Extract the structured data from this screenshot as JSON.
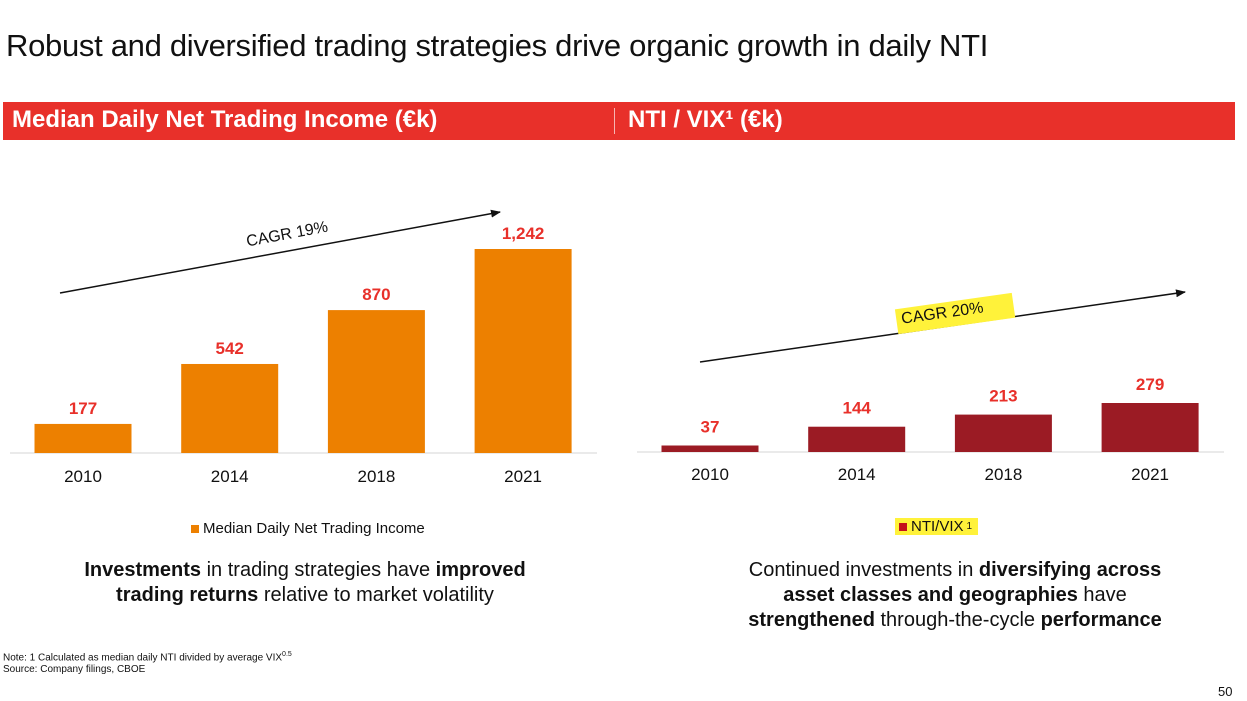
{
  "title": "Robust and diversified trading strategies drive organic growth in daily NTI",
  "page_number": "50",
  "left_panel": {
    "header": "Median Daily Net Trading Income (€k)",
    "cagr_label": "CAGR 19%",
    "legend": "Median Daily Net Trading Income",
    "caption": {
      "p1": "Investments",
      "p2": " in trading strategies have ",
      "p3": "improved",
      "p4": "trading returns",
      "p5": " relative to market volatility"
    }
  },
  "right_panel": {
    "header": "NTI / VIX¹ (€k)",
    "cagr_label": "CAGR 20%",
    "legend": "NTI/VIX",
    "legend_sup": "1",
    "caption": {
      "p1": "Continued investments in ",
      "p2": "diversifying across",
      "p3": "asset classes and geographies",
      "p4": " have",
      "p5": "strengthened",
      "p6": " through-the-cycle ",
      "p7": "performance"
    }
  },
  "footnote": {
    "note": "Note: 1 Calculated as median daily NTI divided by average VIX",
    "note_sup": "0.5",
    "source": "Source: Company filings, CBOE"
  },
  "colors": {
    "banner": "#e8302a",
    "bar_left": "#ed8000",
    "bar_right": "#9b1b24",
    "value_label": "#e8302a",
    "highlight": "#fff23a"
  },
  "chart_data": [
    {
      "type": "bar",
      "title": "Median Daily Net Trading Income (€k)",
      "categories": [
        "2010",
        "2014",
        "2018",
        "2021"
      ],
      "series": [
        {
          "name": "Median Daily Net Trading Income",
          "values": [
            177,
            542,
            870,
            1242
          ]
        }
      ],
      "value_labels": [
        "177",
        "542",
        "870",
        "1,242"
      ],
      "ylim": [
        0,
        1242
      ],
      "annotation": "CAGR 19%",
      "grid": false,
      "legend_position": "bottom"
    },
    {
      "type": "bar",
      "title": "NTI / VIX¹ (€k)",
      "categories": [
        "2010",
        "2014",
        "2018",
        "2021"
      ],
      "series": [
        {
          "name": "NTI/VIX",
          "values": [
            37,
            144,
            213,
            279
          ]
        }
      ],
      "value_labels": [
        "37",
        "144",
        "213",
        "279"
      ],
      "ylim": [
        0,
        279
      ],
      "annotation": "CAGR 20%",
      "grid": false,
      "legend_position": "bottom"
    }
  ]
}
